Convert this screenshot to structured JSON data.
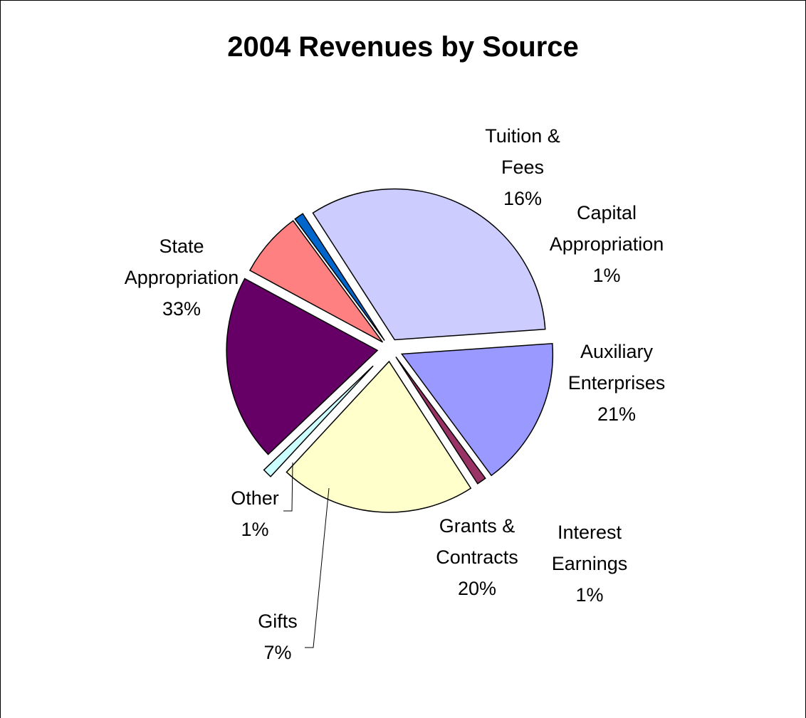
{
  "chart_data": {
    "type": "pie",
    "title": "2004 Revenues by Source",
    "slices": [
      {
        "name": "Tuition & Fees",
        "label_lines": [
          "Tuition &",
          "Fees"
        ],
        "pct_label": "16%",
        "value": 16,
        "color": "#9999ff"
      },
      {
        "name": "Capital Appropriation",
        "label_lines": [
          "Capital",
          "Appropriation"
        ],
        "pct_label": "1%",
        "value": 1,
        "color": "#993366"
      },
      {
        "name": "Auxiliary Enterprises",
        "label_lines": [
          "Auxiliary",
          "Enterprises"
        ],
        "pct_label": "21%",
        "value": 21,
        "color": "#ffffcc"
      },
      {
        "name": "Interest Earnings",
        "label_lines": [
          "Interest",
          "Earnings"
        ],
        "pct_label": "1%",
        "value": 1,
        "color": "#ccffff"
      },
      {
        "name": "Grants & Contracts",
        "label_lines": [
          "Grants &",
          "Contracts"
        ],
        "pct_label": "20%",
        "value": 20,
        "color": "#660066"
      },
      {
        "name": "Gifts",
        "label_lines": [
          "Gifts"
        ],
        "pct_label": "7%",
        "value": 7,
        "color": "#ff8080"
      },
      {
        "name": "Other",
        "label_lines": [
          "Other"
        ],
        "pct_label": "1%",
        "value": 1,
        "color": "#0066cc"
      },
      {
        "name": "State Appropriation",
        "label_lines": [
          "State",
          "Appropriation"
        ],
        "pct_label": "33%",
        "value": 33,
        "color": "#ccccff"
      }
    ]
  }
}
